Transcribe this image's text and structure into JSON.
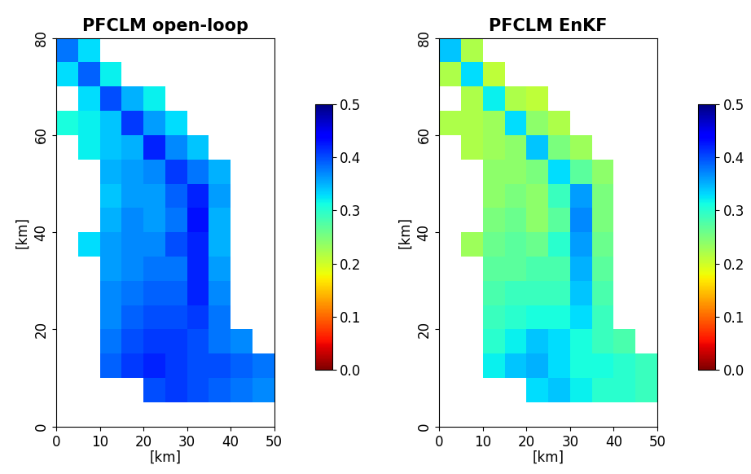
{
  "chart_data": [
    {
      "type": "heatmap",
      "title": "PFCLM open-loop",
      "x_label": "[km]",
      "y_label": "[km]",
      "xlim": [
        0,
        50
      ],
      "ylim": [
        0,
        80
      ],
      "xticks": [
        0,
        10,
        20,
        30,
        40,
        50
      ],
      "yticks": [
        0,
        20,
        40,
        60,
        80
      ],
      "x": [
        2.5,
        7.5,
        12.5,
        17.5,
        22.5,
        27.5,
        32.5,
        37.5,
        42.5,
        47.5
      ],
      "y": [
        2.5,
        7.5,
        12.5,
        17.5,
        22.5,
        27.5,
        32.5,
        37.5,
        42.5,
        47.5,
        52.5,
        57.5,
        62.5,
        67.5,
        72.5,
        77.5
      ],
      "cells": [
        [
          null,
          null,
          null,
          null,
          null,
          null,
          null,
          null,
          null,
          null
        ],
        [
          null,
          null,
          null,
          null,
          0.4,
          0.41,
          0.4,
          0.39,
          0.38,
          0.37
        ],
        [
          null,
          null,
          0.39,
          0.41,
          0.42,
          0.41,
          0.4,
          0.4,
          0.39,
          0.38
        ],
        [
          null,
          null,
          0.38,
          0.4,
          0.41,
          0.41,
          0.4,
          0.38,
          0.37,
          null
        ],
        [
          null,
          null,
          0.37,
          0.39,
          0.4,
          0.4,
          0.41,
          0.38,
          null,
          null
        ],
        [
          null,
          null,
          0.37,
          0.38,
          0.39,
          0.39,
          0.42,
          0.37,
          null,
          null
        ],
        [
          null,
          null,
          0.36,
          0.37,
          0.38,
          0.38,
          0.42,
          0.36,
          null,
          null
        ],
        [
          null,
          0.33,
          0.36,
          0.37,
          0.37,
          0.4,
          0.42,
          0.35,
          null,
          null
        ],
        [
          null,
          null,
          0.35,
          0.37,
          0.36,
          0.38,
          0.43,
          0.35,
          null,
          null
        ],
        [
          null,
          null,
          0.34,
          0.36,
          0.36,
          0.39,
          0.42,
          0.36,
          null,
          null
        ],
        [
          null,
          null,
          0.35,
          0.36,
          0.37,
          0.41,
          0.38,
          0.35,
          null,
          null
        ],
        [
          null,
          0.32,
          0.34,
          0.35,
          0.42,
          0.37,
          0.34,
          null,
          null,
          null
        ],
        [
          0.31,
          0.32,
          0.34,
          0.41,
          0.36,
          0.33,
          null,
          null,
          null,
          null
        ],
        [
          null,
          0.33,
          0.4,
          0.35,
          0.32,
          null,
          null,
          null,
          null,
          null
        ],
        [
          0.33,
          0.39,
          0.32,
          null,
          null,
          null,
          null,
          null,
          null,
          null
        ],
        [
          0.38,
          0.33,
          null,
          null,
          null,
          null,
          null,
          null,
          null,
          null
        ]
      ],
      "colorbar_range": [
        0.0,
        0.5
      ],
      "colorbar_ticks": [
        0.0,
        0.1,
        0.2,
        0.3,
        0.4,
        0.5
      ]
    },
    {
      "type": "heatmap",
      "title": "PFCLM EnKF",
      "x_label": "[km]",
      "y_label": "[km]",
      "xlim": [
        0,
        50
      ],
      "ylim": [
        0,
        80
      ],
      "xticks": [
        0,
        10,
        20,
        30,
        40,
        50
      ],
      "yticks": [
        0,
        20,
        40,
        60,
        80
      ],
      "x": [
        2.5,
        7.5,
        12.5,
        17.5,
        22.5,
        27.5,
        32.5,
        37.5,
        42.5,
        47.5
      ],
      "y": [
        2.5,
        7.5,
        12.5,
        17.5,
        22.5,
        27.5,
        32.5,
        37.5,
        42.5,
        47.5,
        52.5,
        57.5,
        62.5,
        67.5,
        72.5,
        77.5
      ],
      "cells": [
        [
          null,
          null,
          null,
          null,
          null,
          null,
          null,
          null,
          null,
          null
        ],
        [
          null,
          null,
          null,
          null,
          0.33,
          0.34,
          0.32,
          0.3,
          0.3,
          0.29
        ],
        [
          null,
          null,
          0.32,
          0.34,
          0.35,
          0.33,
          0.31,
          0.31,
          0.3,
          0.29
        ],
        [
          null,
          null,
          0.3,
          0.32,
          0.34,
          0.33,
          0.31,
          0.29,
          0.28,
          null
        ],
        [
          null,
          null,
          0.29,
          0.3,
          0.31,
          0.31,
          0.33,
          0.29,
          null,
          null
        ],
        [
          null,
          null,
          0.28,
          0.29,
          0.29,
          0.29,
          0.34,
          0.28,
          null,
          null
        ],
        [
          null,
          null,
          0.27,
          0.27,
          0.28,
          0.28,
          0.35,
          0.27,
          null,
          null
        ],
        [
          null,
          0.23,
          0.26,
          0.27,
          0.26,
          0.3,
          0.36,
          0.26,
          null,
          null
        ],
        [
          null,
          null,
          0.25,
          0.26,
          0.24,
          0.27,
          0.37,
          0.25,
          null,
          null
        ],
        [
          null,
          null,
          0.24,
          0.25,
          0.24,
          0.29,
          0.36,
          0.25,
          null,
          null
        ],
        [
          null,
          null,
          0.24,
          0.24,
          0.25,
          0.33,
          0.27,
          0.24,
          null,
          null
        ],
        [
          null,
          0.22,
          0.23,
          0.24,
          0.34,
          0.25,
          0.23,
          null,
          null,
          null
        ],
        [
          0.22,
          0.22,
          0.23,
          0.33,
          0.24,
          0.22,
          null,
          null,
          null,
          null
        ],
        [
          null,
          0.22,
          0.32,
          0.22,
          0.21,
          null,
          null,
          null,
          null,
          null
        ],
        [
          0.22,
          0.33,
          0.21,
          null,
          null,
          null,
          null,
          null,
          null,
          null
        ],
        [
          0.34,
          0.22,
          null,
          null,
          null,
          null,
          null,
          null,
          null,
          null
        ]
      ],
      "colorbar_range": [
        0.0,
        0.5
      ],
      "colorbar_ticks": [
        0.0,
        0.1,
        0.2,
        0.3,
        0.4,
        0.5
      ]
    }
  ]
}
